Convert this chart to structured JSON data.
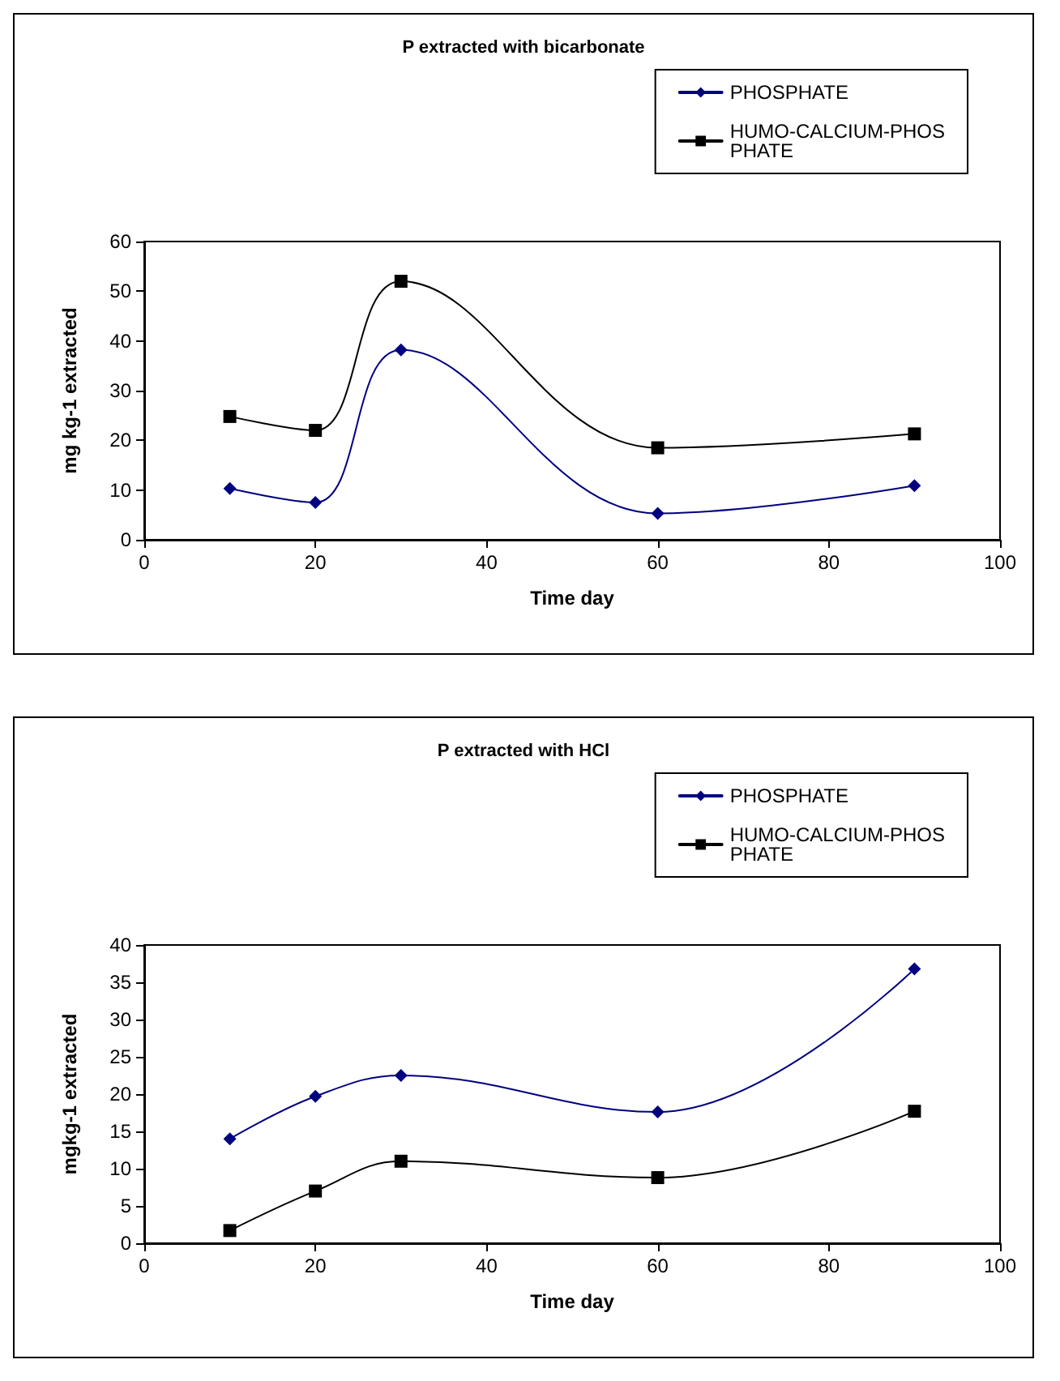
{
  "chart_data": [
    {
      "type": "line",
      "title": "P extracted with bicarbonate",
      "xlabel": "Time day",
      "ylabel": "mg kg-1 extracted",
      "x": [
        10,
        20,
        30,
        60,
        90
      ],
      "series": [
        {
          "name": "PHOSPHATE",
          "color": "#000080",
          "marker": "diamond",
          "values": [
            10.3,
            7.5,
            38.2,
            5.3,
            10.9
          ]
        },
        {
          "name": "HUMO-CALCIUM-PHOSPHATE",
          "color": "#000000",
          "marker": "square",
          "values": [
            24.8,
            22,
            52,
            18.5,
            21.3
          ]
        }
      ],
      "xlim": [
        0,
        100
      ],
      "xticks": [
        0,
        20,
        40,
        60,
        80,
        100
      ],
      "ylim": [
        0,
        60
      ],
      "yticks": [
        0,
        10,
        20,
        30,
        40,
        50,
        60
      ],
      "grid": false,
      "legend": "top right",
      "line_style": "solid"
    },
    {
      "type": "line",
      "title": "P extracted with HCl",
      "xlabel": "Time day",
      "ylabel": "mgkg-1 extracted",
      "x": [
        10,
        20,
        30,
        60,
        90
      ],
      "series": [
        {
          "name": "PHOSPHATE",
          "color": "#000080",
          "marker": "diamond",
          "values": [
            14,
            19.7,
            22.5,
            17.6,
            36.8
          ]
        },
        {
          "name": "HUMO-CALCIUM-PHOSPHATE",
          "color": "#000000",
          "marker": "square",
          "values": [
            1.7,
            7,
            11,
            8.8,
            17.7
          ]
        }
      ],
      "xlim": [
        0,
        100
      ],
      "xticks": [
        0,
        20,
        40,
        60,
        80,
        100
      ],
      "ylim": [
        0,
        40
      ],
      "yticks": [
        0,
        5,
        10,
        15,
        20,
        25,
        30,
        35,
        40
      ],
      "grid": false,
      "legend": "top right",
      "line_style": "solid"
    }
  ]
}
